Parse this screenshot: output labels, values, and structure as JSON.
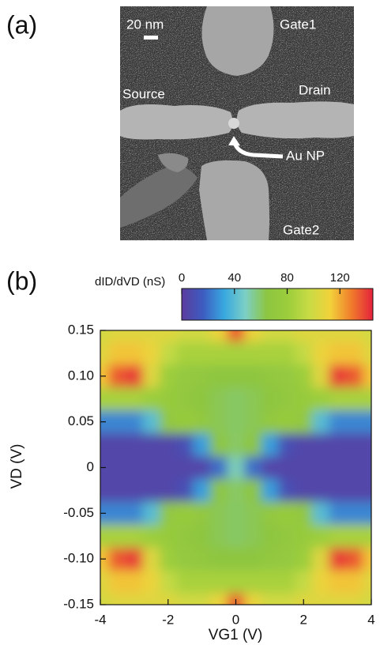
{
  "panel_a": {
    "label": "(a)",
    "scale_bar": "20 nm",
    "labels": {
      "gate1": "Gate1",
      "source": "Source",
      "drain": "Drain",
      "nanoparticle": "Au NP",
      "gate2": "Gate2"
    }
  },
  "panel_b": {
    "label": "(b)"
  },
  "chart_data": {
    "type": "heatmap",
    "xlabel": "VG1 (V)",
    "ylabel": "VD (V)",
    "colorbar_label": "dID/dVD (nS)",
    "xlim": [
      -4,
      4
    ],
    "xticks": [
      -4,
      -2,
      0,
      2,
      4
    ],
    "ylim": [
      -0.15,
      0.15
    ],
    "yticks": [
      0.15,
      {
        "value": 0.1,
        "label": "0.10"
      },
      0.05,
      0,
      -0.05,
      {
        "value": -0.1,
        "label": "-0.10"
      },
      -0.15
    ],
    "clim": [
      0,
      145
    ],
    "cticks": [
      0,
      40,
      80,
      120
    ],
    "colormap": [
      "#5b3c9e",
      "#3d5cc0",
      "#38a8e0",
      "#7ccfc5",
      "#8dc641",
      "#9ccd3c",
      "#c8db45",
      "#f2d13a",
      "#f07b2b",
      "#e4213c"
    ],
    "x": [
      -4,
      -3.5,
      -3,
      -2.5,
      -2,
      -1.5,
      -1,
      -0.5,
      0,
      0.5,
      1,
      1.5,
      2,
      2.5,
      3,
      3.5,
      4
    ],
    "y": [
      0.15,
      0.125,
      0.1,
      0.075,
      0.05,
      0.025,
      0,
      -0.025,
      -0.05,
      -0.075,
      -0.1,
      -0.125,
      -0.15
    ],
    "z": [
      [
        100,
        105,
        105,
        105,
        105,
        100,
        100,
        110,
        135,
        110,
        100,
        100,
        105,
        105,
        105,
        105,
        100
      ],
      [
        105,
        115,
        115,
        110,
        95,
        85,
        85,
        85,
        85,
        85,
        85,
        85,
        95,
        110,
        115,
        115,
        105
      ],
      [
        115,
        135,
        140,
        105,
        80,
        72,
        70,
        65,
        65,
        65,
        70,
        72,
        80,
        105,
        140,
        135,
        115
      ],
      [
        85,
        85,
        85,
        80,
        75,
        70,
        65,
        62,
        60,
        62,
        65,
        70,
        75,
        80,
        85,
        85,
        85
      ],
      [
        25,
        25,
        25,
        40,
        70,
        75,
        70,
        62,
        60,
        62,
        70,
        75,
        70,
        40,
        25,
        25,
        25
      ],
      [
        5,
        5,
        5,
        5,
        5,
        10,
        30,
        65,
        60,
        65,
        30,
        10,
        5,
        5,
        5,
        5,
        5
      ],
      [
        5,
        5,
        5,
        5,
        5,
        5,
        5,
        20,
        50,
        20,
        5,
        5,
        5,
        5,
        5,
        5,
        5
      ],
      [
        5,
        5,
        5,
        5,
        5,
        10,
        30,
        65,
        60,
        65,
        30,
        10,
        5,
        5,
        5,
        5,
        5
      ],
      [
        25,
        25,
        25,
        40,
        70,
        75,
        70,
        62,
        60,
        62,
        70,
        75,
        70,
        40,
        25,
        25,
        25
      ],
      [
        85,
        85,
        85,
        80,
        75,
        70,
        65,
        62,
        60,
        62,
        65,
        70,
        75,
        80,
        85,
        85,
        85
      ],
      [
        115,
        135,
        140,
        105,
        80,
        72,
        70,
        65,
        65,
        65,
        70,
        72,
        80,
        105,
        140,
        135,
        115
      ],
      [
        105,
        115,
        115,
        110,
        95,
        85,
        85,
        85,
        85,
        85,
        85,
        85,
        95,
        110,
        115,
        115,
        105
      ],
      [
        100,
        105,
        105,
        105,
        105,
        100,
        100,
        110,
        135,
        110,
        100,
        100,
        105,
        105,
        105,
        105,
        100
      ]
    ]
  }
}
